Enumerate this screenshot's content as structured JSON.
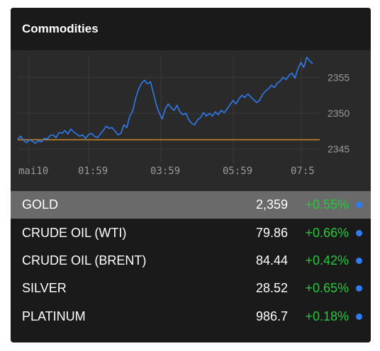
{
  "widget": {
    "title": "Commodities"
  },
  "chart_data": {
    "type": "line",
    "x_tick_labels": [
      "mai10",
      "01:59",
      "03:59",
      "05:59",
      "07:5"
    ],
    "y_tick_labels": [
      "2355",
      "2350",
      "2345"
    ],
    "ylim": [
      2343,
      2358
    ],
    "reference_line": 2346.3,
    "grid": true,
    "series": [
      {
        "values": [
          2346.4,
          2346.8,
          2346.2,
          2345.9,
          2346.3,
          2346.1,
          2345.8,
          2346.2,
          2346.0,
          2346.5,
          2346.4,
          2346.9,
          2347.0,
          2346.6,
          2347.3,
          2347.2,
          2347.6,
          2347.1,
          2347.8,
          2347.4,
          2347.1,
          2346.8,
          2347.0,
          2346.5,
          2347.0,
          2347.2,
          2346.8,
          2346.6,
          2347.1,
          2347.6,
          2348.2,
          2347.9,
          2348.0,
          2347.5,
          2347.0,
          2347.2,
          2348.4,
          2348.0,
          2349.6,
          2350.3,
          2352.1,
          2353.4,
          2354.2,
          2354.6,
          2354.1,
          2354.4,
          2352.8,
          2351.2,
          2350.0,
          2349.2,
          2350.6,
          2351.3,
          2350.8,
          2350.4,
          2351.1,
          2350.2,
          2349.8,
          2350.0,
          2349.1,
          2348.6,
          2348.4,
          2349.1,
          2349.4,
          2350.1,
          2349.6,
          2350.0,
          2349.6,
          2350.2,
          2349.8,
          2350.4,
          2350.1,
          2350.6,
          2351.2,
          2351.8,
          2351.3,
          2352.0,
          2352.5,
          2352.2,
          2352.7,
          2352.3,
          2351.9,
          2351.5,
          2351.8,
          2352.6,
          2353.1,
          2353.4,
          2353.9,
          2353.6,
          2354.2,
          2354.5,
          2355.0,
          2354.7,
          2355.3,
          2355.6,
          2354.9,
          2356.2,
          2357.1,
          2356.4,
          2357.8,
          2357.3,
          2356.9
        ],
        "color": "#2f7bf0"
      }
    ],
    "colors": {
      "line": "#2f7bf0",
      "reference": "#c7872a",
      "grid": "#3a3a3a",
      "tick_text": "#9a9a9a",
      "background": "#2a2a2a"
    }
  },
  "rows": [
    {
      "name": "GOLD",
      "price": "2,359",
      "change": "+0.55%",
      "selected": true
    },
    {
      "name": "CRUDE OIL (WTI)",
      "price": "79.86",
      "change": "+0.66%",
      "selected": false
    },
    {
      "name": "CRUDE OIL (BRENT)",
      "price": "84.44",
      "change": "+0.42%",
      "selected": false
    },
    {
      "name": "SILVER",
      "price": "28.52",
      "change": "+0.65%",
      "selected": false
    },
    {
      "name": "PLATINUM",
      "price": "986.7",
      "change": "+0.18%",
      "selected": false
    }
  ],
  "colors": {
    "positive_change": "#22c93a",
    "dot": "#2f7bf0",
    "selected_row": "#6a6a6a"
  }
}
